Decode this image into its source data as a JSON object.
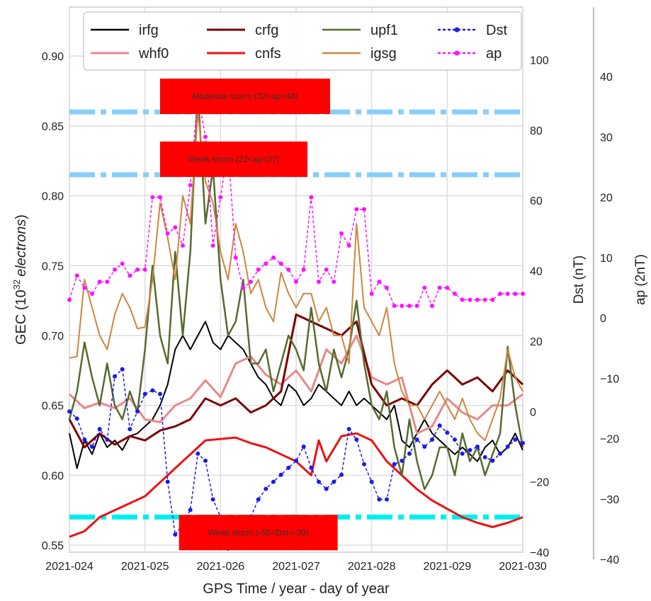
{
  "chart_data": {
    "type": "line",
    "xlabel": "GPS Time / year - day of year",
    "ylabel_left": "GEC (10^32 electrons)",
    "ylabel_left_parts": {
      "prefix": "GEC (10",
      "exp": "32",
      "unit": "electrons",
      "suffix": ")"
    },
    "ylabel_right1": "Dst (nT)",
    "ylabel_right2": "ap (2nT)",
    "xlim": [
      24,
      30
    ],
    "ylim_left": [
      0.545,
      0.935
    ],
    "ylim_dst": [
      -40,
      115
    ],
    "ylim_ap": [
      -40,
      48
    ],
    "grid": true,
    "legend_placement": "top",
    "x_ticks": [
      {
        "v": 24,
        "label": "2021-024"
      },
      {
        "v": 25,
        "label": "2021-025"
      },
      {
        "v": 26,
        "label": "2021-026"
      },
      {
        "v": 27,
        "label": "2021-027"
      },
      {
        "v": 28,
        "label": "2021-028"
      },
      {
        "v": 29,
        "label": "2021-029"
      },
      {
        "v": 30,
        "label": "2021-030"
      }
    ],
    "left_ticks": [
      {
        "v": 0.55,
        "label": "0.55"
      },
      {
        "v": 0.6,
        "label": "0.60"
      },
      {
        "v": 0.65,
        "label": "0.65"
      },
      {
        "v": 0.7,
        "label": "0.70"
      },
      {
        "v": 0.75,
        "label": "0.75"
      },
      {
        "v": 0.8,
        "label": "0.80"
      },
      {
        "v": 0.85,
        "label": "0.85"
      },
      {
        "v": 0.9,
        "label": "0.90"
      }
    ],
    "dst_ticks": [
      {
        "v": -40,
        "label": "−40"
      },
      {
        "v": -20,
        "label": "−20"
      },
      {
        "v": 0,
        "label": "0"
      },
      {
        "v": 20,
        "label": "20"
      },
      {
        "v": 40,
        "label": "40"
      },
      {
        "v": 60,
        "label": "60"
      },
      {
        "v": 80,
        "label": "80"
      },
      {
        "v": 100,
        "label": "100"
      }
    ],
    "ap_ticks": [
      {
        "v": -40,
        "label": "−40"
      },
      {
        "v": -30,
        "label": "−30"
      },
      {
        "v": -20,
        "label": "−20"
      },
      {
        "v": -10,
        "label": "−10"
      },
      {
        "v": 0,
        "label": "0"
      },
      {
        "v": 10,
        "label": "10"
      },
      {
        "v": 20,
        "label": "20"
      },
      {
        "v": 30,
        "label": "30"
      },
      {
        "v": 40,
        "label": "40"
      }
    ],
    "series": [
      {
        "name": "irfg",
        "axis": "left",
        "color": "#000000",
        "width": 2,
        "dash": "",
        "x": [
          24.0,
          24.1,
          24.2,
          24.3,
          24.4,
          24.5,
          24.6,
          24.7,
          24.8,
          24.9,
          25.0,
          25.1,
          25.2,
          25.3,
          25.4,
          25.5,
          25.6,
          25.7,
          25.8,
          25.9,
          26.0,
          26.1,
          26.2,
          26.3,
          26.4,
          26.5,
          26.6,
          26.7,
          26.8,
          26.9,
          27.0,
          27.1,
          27.2,
          27.3,
          27.4,
          27.5,
          27.6,
          27.7,
          27.8,
          27.9,
          28.0,
          28.1,
          28.2,
          28.3,
          28.4,
          28.5,
          28.6,
          28.7,
          28.8,
          28.9,
          29.0,
          29.1,
          29.2,
          29.3,
          29.4,
          29.5,
          29.6,
          29.7,
          29.8,
          29.9,
          30.0
        ],
        "y": [
          0.63,
          0.605,
          0.625,
          0.615,
          0.63,
          0.62,
          0.625,
          0.618,
          0.628,
          0.63,
          0.635,
          0.64,
          0.65,
          0.665,
          0.69,
          0.7,
          0.69,
          0.7,
          0.71,
          0.695,
          0.69,
          0.7,
          0.695,
          0.69,
          0.68,
          0.67,
          0.665,
          0.655,
          0.65,
          0.665,
          0.66,
          0.65,
          0.655,
          0.665,
          0.66,
          0.655,
          0.65,
          0.66,
          0.65,
          0.655,
          0.65,
          0.645,
          0.64,
          0.65,
          0.625,
          0.62,
          0.63,
          0.64,
          0.63,
          0.625,
          0.62,
          0.615,
          0.62,
          0.615,
          0.61,
          0.62,
          0.625,
          0.615,
          0.62,
          0.63,
          0.618
        ]
      },
      {
        "name": "whf0",
        "axis": "left",
        "color": "#e8888a",
        "width": 3,
        "dash": "",
        "x": [
          24.0,
          24.2,
          24.4,
          24.6,
          24.8,
          25.0,
          25.2,
          25.4,
          25.6,
          25.8,
          26.0,
          26.2,
          26.4,
          26.6,
          26.8,
          27.0,
          27.2,
          27.4,
          27.6,
          27.8,
          28.0,
          28.2,
          28.4,
          28.6,
          28.8,
          29.0,
          29.2,
          29.4,
          29.6,
          29.8,
          30.0
        ],
        "y": [
          0.658,
          0.648,
          0.652,
          0.648,
          0.655,
          0.64,
          0.638,
          0.65,
          0.655,
          0.668,
          0.656,
          0.68,
          0.685,
          0.672,
          0.665,
          0.675,
          0.66,
          0.69,
          0.68,
          0.7,
          0.67,
          0.665,
          0.67,
          0.63,
          0.635,
          0.655,
          0.645,
          0.64,
          0.65,
          0.65,
          0.658
        ]
      },
      {
        "name": "crfg",
        "axis": "left",
        "color": "#7b0000",
        "width": 3,
        "dash": "",
        "x": [
          24.0,
          24.2,
          24.4,
          24.6,
          24.8,
          25.0,
          25.2,
          25.4,
          25.6,
          25.8,
          26.0,
          26.2,
          26.4,
          26.6,
          26.8,
          27.0,
          27.2,
          27.4,
          27.6,
          27.8,
          28.0,
          28.2,
          28.4,
          28.6,
          28.8,
          29.0,
          29.2,
          29.4,
          29.6,
          29.8,
          30.0
        ],
        "y": [
          0.64,
          0.62,
          0.63,
          0.622,
          0.628,
          0.625,
          0.632,
          0.635,
          0.64,
          0.655,
          0.65,
          0.655,
          0.645,
          0.65,
          0.66,
          0.715,
          0.71,
          0.705,
          0.7,
          0.71,
          0.665,
          0.65,
          0.655,
          0.65,
          0.665,
          0.675,
          0.665,
          0.67,
          0.66,
          0.675,
          0.665
        ]
      },
      {
        "name": "cnfs",
        "axis": "left",
        "color": "#ee1111",
        "width": 3,
        "dash": "",
        "x": [
          24.0,
          24.2,
          24.4,
          24.6,
          24.8,
          25.0,
          25.2,
          25.4,
          25.6,
          25.8,
          26.0,
          26.2,
          26.4,
          26.6,
          26.8,
          27.0,
          27.2,
          27.3,
          27.4,
          27.6,
          27.8,
          28.0,
          28.2,
          28.4,
          28.6,
          28.8,
          29.0,
          29.2,
          29.4,
          29.6,
          29.8,
          30.0
        ],
        "y": [
          0.556,
          0.56,
          0.57,
          0.575,
          0.58,
          0.585,
          0.595,
          0.605,
          0.615,
          0.625,
          0.626,
          0.627,
          0.623,
          0.62,
          0.615,
          0.61,
          0.6,
          0.625,
          0.61,
          0.628,
          0.63,
          0.625,
          0.61,
          0.6,
          0.59,
          0.582,
          0.576,
          0.57,
          0.566,
          0.563,
          0.566,
          0.57
        ]
      },
      {
        "name": "upf1",
        "axis": "left",
        "color": "#556b2f",
        "width": 2.5,
        "dash": "",
        "x": [
          24.0,
          24.1,
          24.2,
          24.3,
          24.4,
          24.5,
          24.6,
          24.7,
          24.8,
          24.9,
          25.0,
          25.1,
          25.2,
          25.3,
          25.4,
          25.5,
          25.6,
          25.7,
          25.8,
          25.9,
          26.0,
          26.1,
          26.2,
          26.3,
          26.4,
          26.5,
          26.6,
          26.7,
          26.8,
          26.9,
          27.0,
          27.1,
          27.2,
          27.3,
          27.4,
          27.5,
          27.6,
          27.7,
          27.8,
          27.9,
          28.0,
          28.1,
          28.2,
          28.3,
          28.4,
          28.5,
          28.6,
          28.7,
          28.8,
          28.9,
          29.0,
          29.1,
          29.2,
          29.3,
          29.4,
          29.5,
          29.6,
          29.7,
          29.8,
          29.9,
          30.0
        ],
        "y": [
          0.64,
          0.66,
          0.695,
          0.67,
          0.65,
          0.68,
          0.65,
          0.64,
          0.66,
          0.645,
          0.69,
          0.75,
          0.7,
          0.68,
          0.76,
          0.7,
          0.76,
          0.875,
          0.78,
          0.82,
          0.74,
          0.7,
          0.71,
          0.74,
          0.68,
          0.68,
          0.69,
          0.66,
          0.68,
          0.7,
          0.69,
          0.675,
          0.72,
          0.68,
          0.66,
          0.69,
          0.67,
          0.69,
          0.725,
          0.68,
          0.65,
          0.64,
          0.66,
          0.62,
          0.6,
          0.64,
          0.61,
          0.59,
          0.6,
          0.62,
          0.62,
          0.6,
          0.63,
          0.61,
          0.62,
          0.6,
          0.615,
          0.63,
          0.692,
          0.65,
          0.62
        ]
      },
      {
        "name": "igsg",
        "axis": "left",
        "color": "#cd853f",
        "width": 2,
        "dash": "",
        "x": [
          24.0,
          24.1,
          24.2,
          24.3,
          24.4,
          24.5,
          24.6,
          24.7,
          24.8,
          24.9,
          25.0,
          25.1,
          25.2,
          25.3,
          25.4,
          25.5,
          25.6,
          25.7,
          25.8,
          25.9,
          26.0,
          26.1,
          26.2,
          26.3,
          26.4,
          26.5,
          26.6,
          26.7,
          26.8,
          26.9,
          27.0,
          27.1,
          27.2,
          27.3,
          27.4,
          27.5,
          27.6,
          27.7,
          27.8,
          27.9,
          28.0,
          28.1,
          28.2,
          28.3,
          28.4,
          28.5,
          28.6,
          28.7,
          28.8,
          28.9,
          29.0,
          29.1,
          29.2,
          29.3,
          29.4,
          29.5,
          29.6,
          29.7,
          29.8,
          29.9,
          30.0
        ],
        "y": [
          0.684,
          0.685,
          0.74,
          0.72,
          0.7,
          0.69,
          0.715,
          0.73,
          0.72,
          0.705,
          0.706,
          0.74,
          0.795,
          0.77,
          0.74,
          0.8,
          0.78,
          0.86,
          0.81,
          0.795,
          0.76,
          0.74,
          0.78,
          0.76,
          0.73,
          0.74,
          0.72,
          0.71,
          0.745,
          0.73,
          0.72,
          0.73,
          0.73,
          0.71,
          0.72,
          0.7,
          0.7,
          0.68,
          0.78,
          0.72,
          0.71,
          0.7,
          0.72,
          0.68,
          0.66,
          0.65,
          0.65,
          0.64,
          0.65,
          0.66,
          0.65,
          0.64,
          0.655,
          0.64,
          0.63,
          0.625,
          0.64,
          0.655,
          0.69,
          0.67,
          0.66
        ]
      },
      {
        "name": "Dst",
        "axis": "dst",
        "color": "#1a1aee",
        "width": 1.5,
        "dash": "4,3",
        "marker": true,
        "x": [
          24.0,
          24.1,
          24.2,
          24.3,
          24.4,
          24.5,
          24.6,
          24.7,
          24.8,
          24.9,
          25.0,
          25.1,
          25.2,
          25.3,
          25.4,
          25.5,
          25.6,
          25.7,
          25.8,
          25.9,
          26.0,
          26.1,
          26.2,
          26.3,
          26.4,
          26.5,
          26.6,
          26.7,
          26.8,
          26.9,
          27.0,
          27.1,
          27.2,
          27.3,
          27.4,
          27.5,
          27.6,
          27.7,
          27.8,
          27.9,
          28.0,
          28.1,
          28.2,
          28.3,
          28.4,
          28.5,
          28.6,
          28.7,
          28.8,
          28.9,
          29.0,
          29.1,
          29.2,
          29.3,
          29.4,
          29.5,
          29.6,
          29.7,
          29.8,
          29.9,
          30.0
        ],
        "y": [
          0.0,
          -2.0,
          -8.0,
          -10.0,
          -5.0,
          -8.0,
          10.0,
          12.0,
          -5.0,
          0.0,
          5.0,
          6.0,
          5.0,
          -20.0,
          -35.0,
          -32.0,
          -28.0,
          -12.0,
          -14.0,
          -25.0,
          -30.0,
          -39.0,
          -38.0,
          -36.0,
          -30.0,
          -25.0,
          -22.0,
          -20.0,
          -18.0,
          -16.0,
          -14.0,
          -10.0,
          -16.0,
          -20.0,
          -22.0,
          -20.0,
          -18.0,
          -5.0,
          -8.0,
          -15.0,
          -20.0,
          -25.0,
          -25.0,
          -15.0,
          -14.0,
          -12.0,
          -8.0,
          -10.0,
          -8.0,
          -4.0,
          -6.0,
          -8.0,
          -12.0,
          -11.0,
          -10.0,
          -13.0,
          -14.0,
          -12.0,
          -10.0,
          -8.0,
          -9.0
        ]
      },
      {
        "name": "ap",
        "axis": "ap",
        "color": "#ff11ff",
        "width": 1.5,
        "dash": "4,3",
        "marker": true,
        "x": [
          24.0,
          24.1,
          24.2,
          24.3,
          24.4,
          24.5,
          24.6,
          24.7,
          24.8,
          24.9,
          25.0,
          25.1,
          25.2,
          25.3,
          25.4,
          25.5,
          25.6,
          25.7,
          25.8,
          25.9,
          26.0,
          26.1,
          26.2,
          26.3,
          26.4,
          26.5,
          26.6,
          26.7,
          26.8,
          26.9,
          27.0,
          27.1,
          27.2,
          27.3,
          27.4,
          27.5,
          27.6,
          27.7,
          27.8,
          27.9,
          28.0,
          28.1,
          28.2,
          28.3,
          28.4,
          28.5,
          28.6,
          28.7,
          28.8,
          28.9,
          29.0,
          29.1,
          29.2,
          29.3,
          29.4,
          29.5,
          29.6,
          29.7,
          29.8,
          29.9,
          30.0
        ],
        "y": [
          3.0,
          7.0,
          5.0,
          4.0,
          6.0,
          6.0,
          8.0,
          9.0,
          7.0,
          8.0,
          8.0,
          20.0,
          20.0,
          14.0,
          15.0,
          12.0,
          22.0,
          37.0,
          30.0,
          12.0,
          20.0,
          28.0,
          10.0,
          5.0,
          6.0,
          8.0,
          9.0,
          10.0,
          9.0,
          8.0,
          6.0,
          8.0,
          20.0,
          6.0,
          8.0,
          6.0,
          14.0,
          12.0,
          18.0,
          18.0,
          4.0,
          6.0,
          5.0,
          2.0,
          2.0,
          2.0,
          2.0,
          5.0,
          2.0,
          5.0,
          5.0,
          4.0,
          3.0,
          3.0,
          3.0,
          3.0,
          3.0,
          4.0,
          4.0,
          4.0,
          4.0
        ]
      }
    ],
    "reference_lines": [
      {
        "axis": "left",
        "y": 0.86,
        "color": "#87cefa",
        "label": "Moderate storm (32<ap<48)",
        "label_x": [
          25.2,
          27.45
        ]
      },
      {
        "axis": "left",
        "y": 0.815,
        "color": "#87cefa",
        "label": "Weak storm (22<ap<27)",
        "label_x": [
          25.2,
          27.15
        ]
      },
      {
        "axis": "dst",
        "y": -30,
        "color": "#00eeee",
        "label": "Weak storm (-50<Dst<-30)",
        "label_x": [
          25.45,
          27.55
        ]
      }
    ]
  }
}
